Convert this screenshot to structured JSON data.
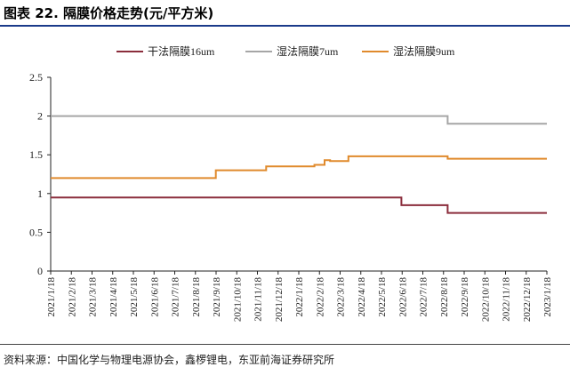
{
  "figure": {
    "title": "图表 22. 隔膜价格走势(元/平方米)",
    "source": "资料来源：中国化学与物理电源协会，鑫椤锂电，东亚前海证券研究所"
  },
  "chart_data": {
    "type": "line",
    "title": "",
    "xlabel": "",
    "ylabel": "",
    "ylim": [
      0,
      2.5
    ],
    "yticks": [
      0,
      0.5,
      1,
      1.5,
      2,
      2.5
    ],
    "ytick_labels": [
      "0",
      "0.5",
      "1",
      "1.5",
      "2",
      "2.5"
    ],
    "xlim": [
      "2021-01-18",
      "2023-01-18"
    ],
    "xtick_labels": [
      "2021/1/18",
      "2021/2/18",
      "2021/3/18",
      "2021/4/18",
      "2021/5/18",
      "2021/6/18",
      "2021/7/18",
      "2021/8/18",
      "2021/9/18",
      "2021/10/18",
      "2021/11/18",
      "2021/12/18",
      "2022/1/18",
      "2022/2/18",
      "2022/3/18",
      "2022/4/18",
      "2022/5/18",
      "2022/6/18",
      "2022/7/18",
      "2022/8/18",
      "2022/9/18",
      "2022/10/18",
      "2022/11/18",
      "2022/12/18",
      "2023/1/18"
    ],
    "grid": false,
    "legend": "top-center",
    "series": [
      {
        "name": "干法隔膜16um",
        "color": "#8b2d3c",
        "points": [
          [
            "2021-01-18",
            0.95
          ],
          [
            "2022-06-18",
            0.95
          ],
          [
            "2022-06-18",
            0.85
          ],
          [
            "2022-08-25",
            0.85
          ],
          [
            "2022-08-25",
            0.75
          ],
          [
            "2023-01-18",
            0.75
          ]
        ]
      },
      {
        "name": "湿法隔膜7um",
        "color": "#a6a6a6",
        "points": [
          [
            "2021-01-18",
            2.0
          ],
          [
            "2022-08-25",
            2.0
          ],
          [
            "2022-08-25",
            1.9
          ],
          [
            "2023-01-18",
            1.9
          ]
        ]
      },
      {
        "name": "湿法隔膜9um",
        "color": "#e08a2c",
        "points": [
          [
            "2021-01-18",
            1.2
          ],
          [
            "2021-09-18",
            1.2
          ],
          [
            "2021-09-18",
            1.3
          ],
          [
            "2021-12-01",
            1.3
          ],
          [
            "2021-12-01",
            1.35
          ],
          [
            "2022-02-10",
            1.35
          ],
          [
            "2022-02-10",
            1.37
          ],
          [
            "2022-02-25",
            1.37
          ],
          [
            "2022-02-25",
            1.43
          ],
          [
            "2022-03-05",
            1.43
          ],
          [
            "2022-03-05",
            1.42
          ],
          [
            "2022-04-01",
            1.42
          ],
          [
            "2022-04-01",
            1.48
          ],
          [
            "2022-08-25",
            1.48
          ],
          [
            "2022-08-25",
            1.45
          ],
          [
            "2023-01-18",
            1.45
          ]
        ]
      }
    ]
  }
}
